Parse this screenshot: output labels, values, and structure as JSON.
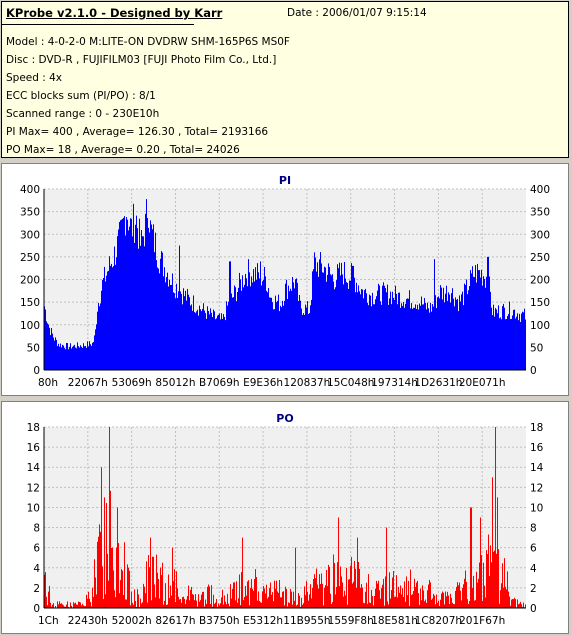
{
  "info": {
    "title": "KProbe v2.1.0 - Designed by Karr",
    "date": "Date : 2006/01/07 9:15:14",
    "model": "Model : 4-0-2-0 M:LITE-ON DVDRW SHM-165P6S MS0F",
    "disc": "Disc : DVD-R , FUJIFILM03 [FUJI Photo Film Co., Ltd.]",
    "speed": "Speed : 4x",
    "ecc": "ECC blocks sum (PI/PO) : 8/1",
    "range": "Scanned range : 0 - 230E10h",
    "pi_summary": "PI Max= 400 , Average= 126.30 , Total= 2193166",
    "po_summary": "PO Max= 18 , Average= 0.20 , Total= 24026"
  },
  "colors": {
    "pi": "#0000ff",
    "po": "#ff0000",
    "grid": "#c0c0c0",
    "plot_bg": "#f0f0f0",
    "title": "#000080"
  },
  "chart_data": [
    {
      "type": "bar",
      "title": "PI",
      "ylim": [
        0,
        400
      ],
      "yticks": [
        0,
        50,
        100,
        150,
        200,
        250,
        300,
        350,
        400
      ],
      "xticks": [
        "80h",
        "22067h",
        "53069h",
        "85012h",
        "B7069h",
        "E9E36h",
        "120837h",
        "15C048h",
        "197314h",
        "1D2631h",
        "20E071h"
      ],
      "envelope": [
        [
          0,
          150
        ],
        [
          0.01,
          100
        ],
        [
          0.02,
          75
        ],
        [
          0.03,
          60
        ],
        [
          0.05,
          55
        ],
        [
          0.08,
          58
        ],
        [
          0.1,
          62
        ],
        [
          0.105,
          80
        ],
        [
          0.11,
          150
        ],
        [
          0.12,
          200
        ],
        [
          0.13,
          230
        ],
        [
          0.145,
          270
        ],
        [
          0.16,
          320
        ],
        [
          0.17,
          380
        ],
        [
          0.18,
          330
        ],
        [
          0.19,
          360
        ],
        [
          0.2,
          290
        ],
        [
          0.21,
          340
        ],
        [
          0.215,
          400
        ],
        [
          0.22,
          330
        ],
        [
          0.24,
          260
        ],
        [
          0.27,
          200
        ],
        [
          0.3,
          165
        ],
        [
          0.33,
          140
        ],
        [
          0.35,
          125
        ],
        [
          0.37,
          115
        ],
        [
          0.38,
          150
        ],
        [
          0.4,
          190
        ],
        [
          0.42,
          230
        ],
        [
          0.44,
          225
        ],
        [
          0.46,
          215
        ],
        [
          0.47,
          170
        ],
        [
          0.49,
          155
        ],
        [
          0.5,
          190
        ],
        [
          0.52,
          210
        ],
        [
          0.53,
          150
        ],
        [
          0.55,
          140
        ],
        [
          0.56,
          250
        ],
        [
          0.58,
          240
        ],
        [
          0.6,
          215
        ],
        [
          0.62,
          230
        ],
        [
          0.63,
          220
        ],
        [
          0.64,
          220
        ],
        [
          0.66,
          185
        ],
        [
          0.68,
          175
        ],
        [
          0.7,
          180
        ],
        [
          0.72,
          178
        ],
        [
          0.74,
          170
        ],
        [
          0.76,
          165
        ],
        [
          0.78,
          160
        ],
        [
          0.79,
          150
        ],
        [
          0.8,
          145
        ],
        [
          0.81,
          155
        ],
        [
          0.82,
          185
        ],
        [
          0.83,
          180
        ],
        [
          0.84,
          190
        ],
        [
          0.86,
          160
        ],
        [
          0.87,
          175
        ],
        [
          0.88,
          200
        ],
        [
          0.89,
          225
        ],
        [
          0.9,
          230
        ],
        [
          0.91,
          225
        ],
        [
          0.92,
          215
        ],
        [
          0.925,
          180
        ],
        [
          0.93,
          135
        ],
        [
          0.95,
          140
        ],
        [
          0.97,
          140
        ],
        [
          1.0,
          125
        ]
      ],
      "spikes": [
        [
          0.28,
          275
        ],
        [
          0.385,
          240
        ],
        [
          0.448,
          240
        ],
        [
          0.56,
          260
        ],
        [
          0.64,
          230
        ],
        [
          0.81,
          245
        ],
        [
          0.92,
          250
        ]
      ]
    },
    {
      "type": "bar",
      "title": "PO",
      "ylim": [
        0,
        18
      ],
      "yticks": [
        0,
        2,
        4,
        6,
        8,
        10,
        12,
        14,
        16,
        18
      ],
      "xticks": [
        "1Ch",
        "22430h",
        "52002h",
        "82617h",
        "B3750h",
        "E5312h",
        "11B955h",
        "1559F8h",
        "18E581h",
        "1C8207h",
        "201F67h"
      ],
      "envelope": [
        [
          0,
          3
        ],
        [
          0.01,
          2
        ],
        [
          0.015,
          0.5
        ],
        [
          0.05,
          0.5
        ],
        [
          0.08,
          0.5
        ],
        [
          0.1,
          2
        ],
        [
          0.11,
          6
        ],
        [
          0.12,
          8
        ],
        [
          0.13,
          12
        ],
        [
          0.135,
          18
        ],
        [
          0.14,
          10
        ],
        [
          0.15,
          8
        ],
        [
          0.17,
          4
        ],
        [
          0.18,
          2
        ],
        [
          0.2,
          1
        ],
        [
          0.21,
          3
        ],
        [
          0.22,
          5
        ],
        [
          0.23,
          4
        ],
        [
          0.25,
          3
        ],
        [
          0.27,
          3
        ],
        [
          0.28,
          2
        ],
        [
          0.3,
          2
        ],
        [
          0.32,
          1
        ],
        [
          0.34,
          2
        ],
        [
          0.36,
          1
        ],
        [
          0.38,
          2
        ],
        [
          0.4,
          3
        ],
        [
          0.42,
          2
        ],
        [
          0.44,
          3
        ],
        [
          0.46,
          2
        ],
        [
          0.48,
          2
        ],
        [
          0.5,
          2
        ],
        [
          0.52,
          1
        ],
        [
          0.54,
          2
        ],
        [
          0.56,
          3
        ],
        [
          0.58,
          3
        ],
        [
          0.6,
          4
        ],
        [
          0.62,
          3
        ],
        [
          0.64,
          4
        ],
        [
          0.66,
          3
        ],
        [
          0.68,
          3
        ],
        [
          0.7,
          2
        ],
        [
          0.72,
          3
        ],
        [
          0.74,
          2
        ],
        [
          0.76,
          3
        ],
        [
          0.78,
          2
        ],
        [
          0.8,
          2
        ],
        [
          0.82,
          1
        ],
        [
          0.84,
          2
        ],
        [
          0.86,
          2
        ],
        [
          0.88,
          4
        ],
        [
          0.9,
          3
        ],
        [
          0.92,
          6
        ],
        [
          0.93,
          8
        ],
        [
          0.95,
          5
        ],
        [
          0.96,
          3
        ],
        [
          0.965,
          1
        ],
        [
          0.97,
          0.8
        ],
        [
          1.0,
          0.5
        ]
      ],
      "spikes": [
        [
          0.135,
          18
        ],
        [
          0.118,
          14
        ],
        [
          0.125,
          11
        ],
        [
          0.152,
          10
        ],
        [
          0.22,
          7
        ],
        [
          0.265,
          6
        ],
        [
          0.41,
          7
        ],
        [
          0.52,
          6
        ],
        [
          0.61,
          9
        ],
        [
          0.65,
          7
        ],
        [
          0.71,
          8
        ],
        [
          0.885,
          10
        ],
        [
          0.905,
          9
        ],
        [
          0.935,
          18
        ],
        [
          0.93,
          13
        ],
        [
          0.94,
          11
        ]
      ]
    }
  ]
}
